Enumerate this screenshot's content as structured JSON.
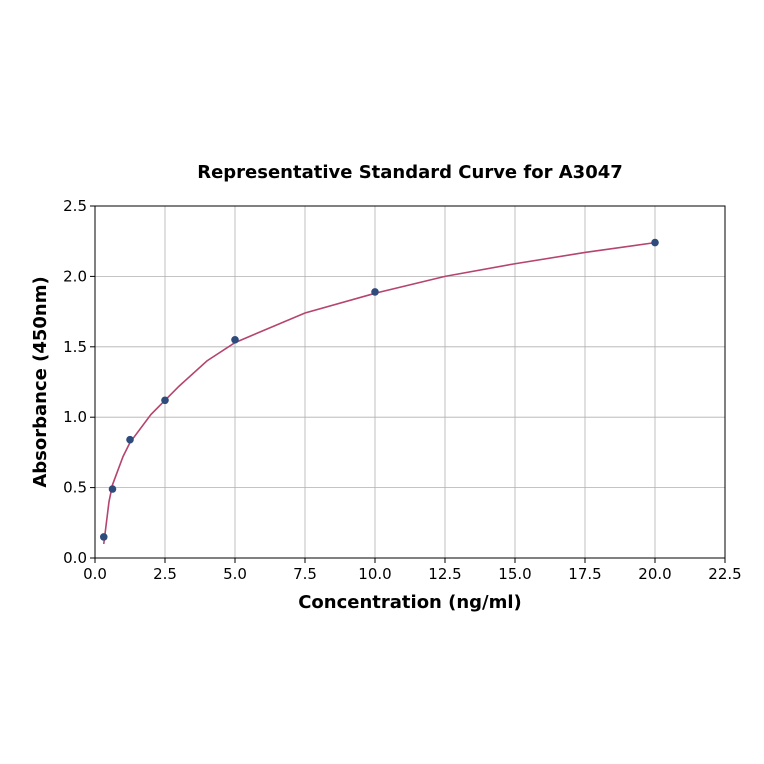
{
  "chart_data": {
    "type": "scatter",
    "title": "Representative Standard Curve for A3047",
    "xlabel": "Concentration (ng/ml)",
    "ylabel": "Absorbance (450nm)",
    "series": [
      {
        "mode": "markers",
        "color": "#2f4b7c",
        "x": [
          0.313,
          0.625,
          1.25,
          2.5,
          5,
          10,
          20
        ],
        "values": [
          0.15,
          0.49,
          0.84,
          1.12,
          1.55,
          1.89,
          2.24
        ]
      },
      {
        "mode": "line",
        "color": "#b5446e",
        "x": [
          0.313,
          0.5,
          0.625,
          1,
          1.25,
          2,
          2.5,
          3,
          4,
          5,
          7.5,
          10,
          12.5,
          15,
          17.5,
          20
        ],
        "values": [
          0.1,
          0.4,
          0.52,
          0.72,
          0.82,
          1.02,
          1.12,
          1.22,
          1.4,
          1.53,
          1.74,
          1.88,
          2.0,
          2.09,
          2.17,
          2.24
        ]
      }
    ],
    "xlim": [
      0,
      22.5
    ],
    "xticks": [
      {
        "value": 0,
        "label": "0.0"
      },
      2.5,
      {
        "value": 5,
        "label": "5.0"
      },
      7.5,
      {
        "value": 10,
        "label": "10.0"
      },
      12.5,
      {
        "value": 15,
        "label": "15.0"
      },
      17.5,
      {
        "value": 20,
        "label": "20.0"
      },
      22.5
    ],
    "ylim": [
      0,
      2.5
    ],
    "yticks": [
      {
        "value": 0,
        "label": "0.0"
      },
      0.5,
      {
        "value": 1,
        "label": "1.0"
      },
      1.5,
      {
        "value": 2,
        "label": "2.0"
      },
      2.5
    ],
    "grid": true
  }
}
